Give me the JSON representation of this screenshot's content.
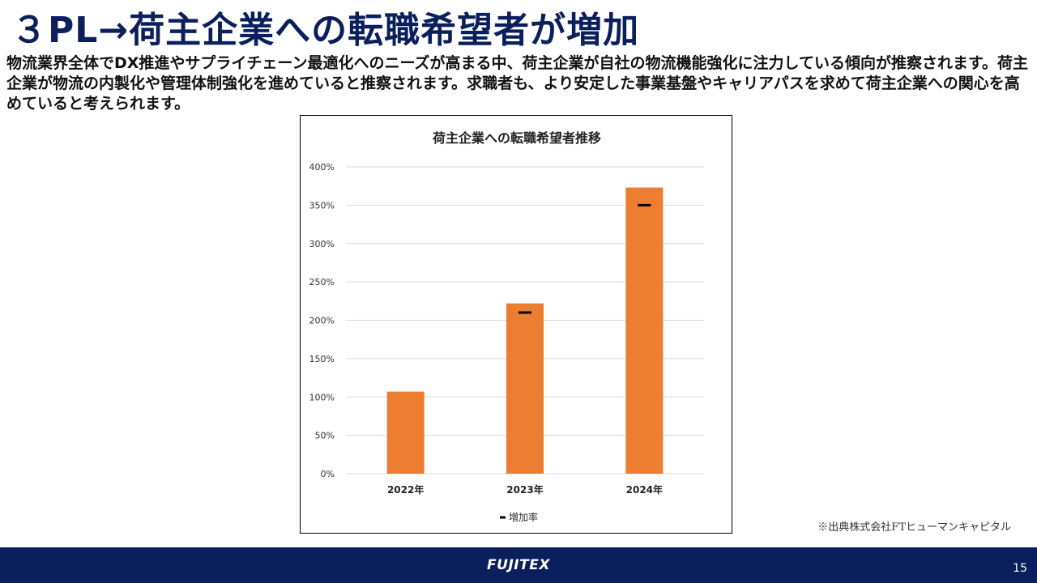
{
  "slide": {
    "title": "３PL→荷主企業への転職希望者が増加",
    "body": "物流業界全体でDX推進やサプライチェーン最適化へのニーズが高まる中、荷主企業が自社の物流機能強化に注力している傾向が推察されます。荷主企業が物流の内製化や管理体制強化を進めていると推察されます。求職者も、より安定した事業基盤やキャリアパスを求めて荷主企業への関心を高めていると考えられます。",
    "source": "※出典株式会社FTヒューマンキャピタル",
    "page_number": "15",
    "footer_logo": "FUJITEX"
  },
  "colors": {
    "title": "#0b1f5c",
    "footer": "#0b1f5c",
    "bar": "#ed7d31",
    "marker": "#000000",
    "grid": "#d9d9d9"
  },
  "chart_data": {
    "type": "bar",
    "title": "荷主企業への転職希望者推移",
    "categories": [
      "2022年",
      "2023年",
      "2024年"
    ],
    "series": [
      {
        "values": [
          107,
          222,
          373
        ],
        "color": "#ed7d31"
      },
      {
        "name": "増加率",
        "marker": "dash",
        "values": [
          null,
          210,
          350
        ],
        "color": "#000000"
      }
    ],
    "yticks": [
      "0%",
      "50%",
      "100%",
      "150%",
      "200%",
      "250%",
      "300%",
      "350%",
      "400%"
    ],
    "ylim": [
      0,
      400
    ],
    "grid": true,
    "legend": "bottom"
  }
}
